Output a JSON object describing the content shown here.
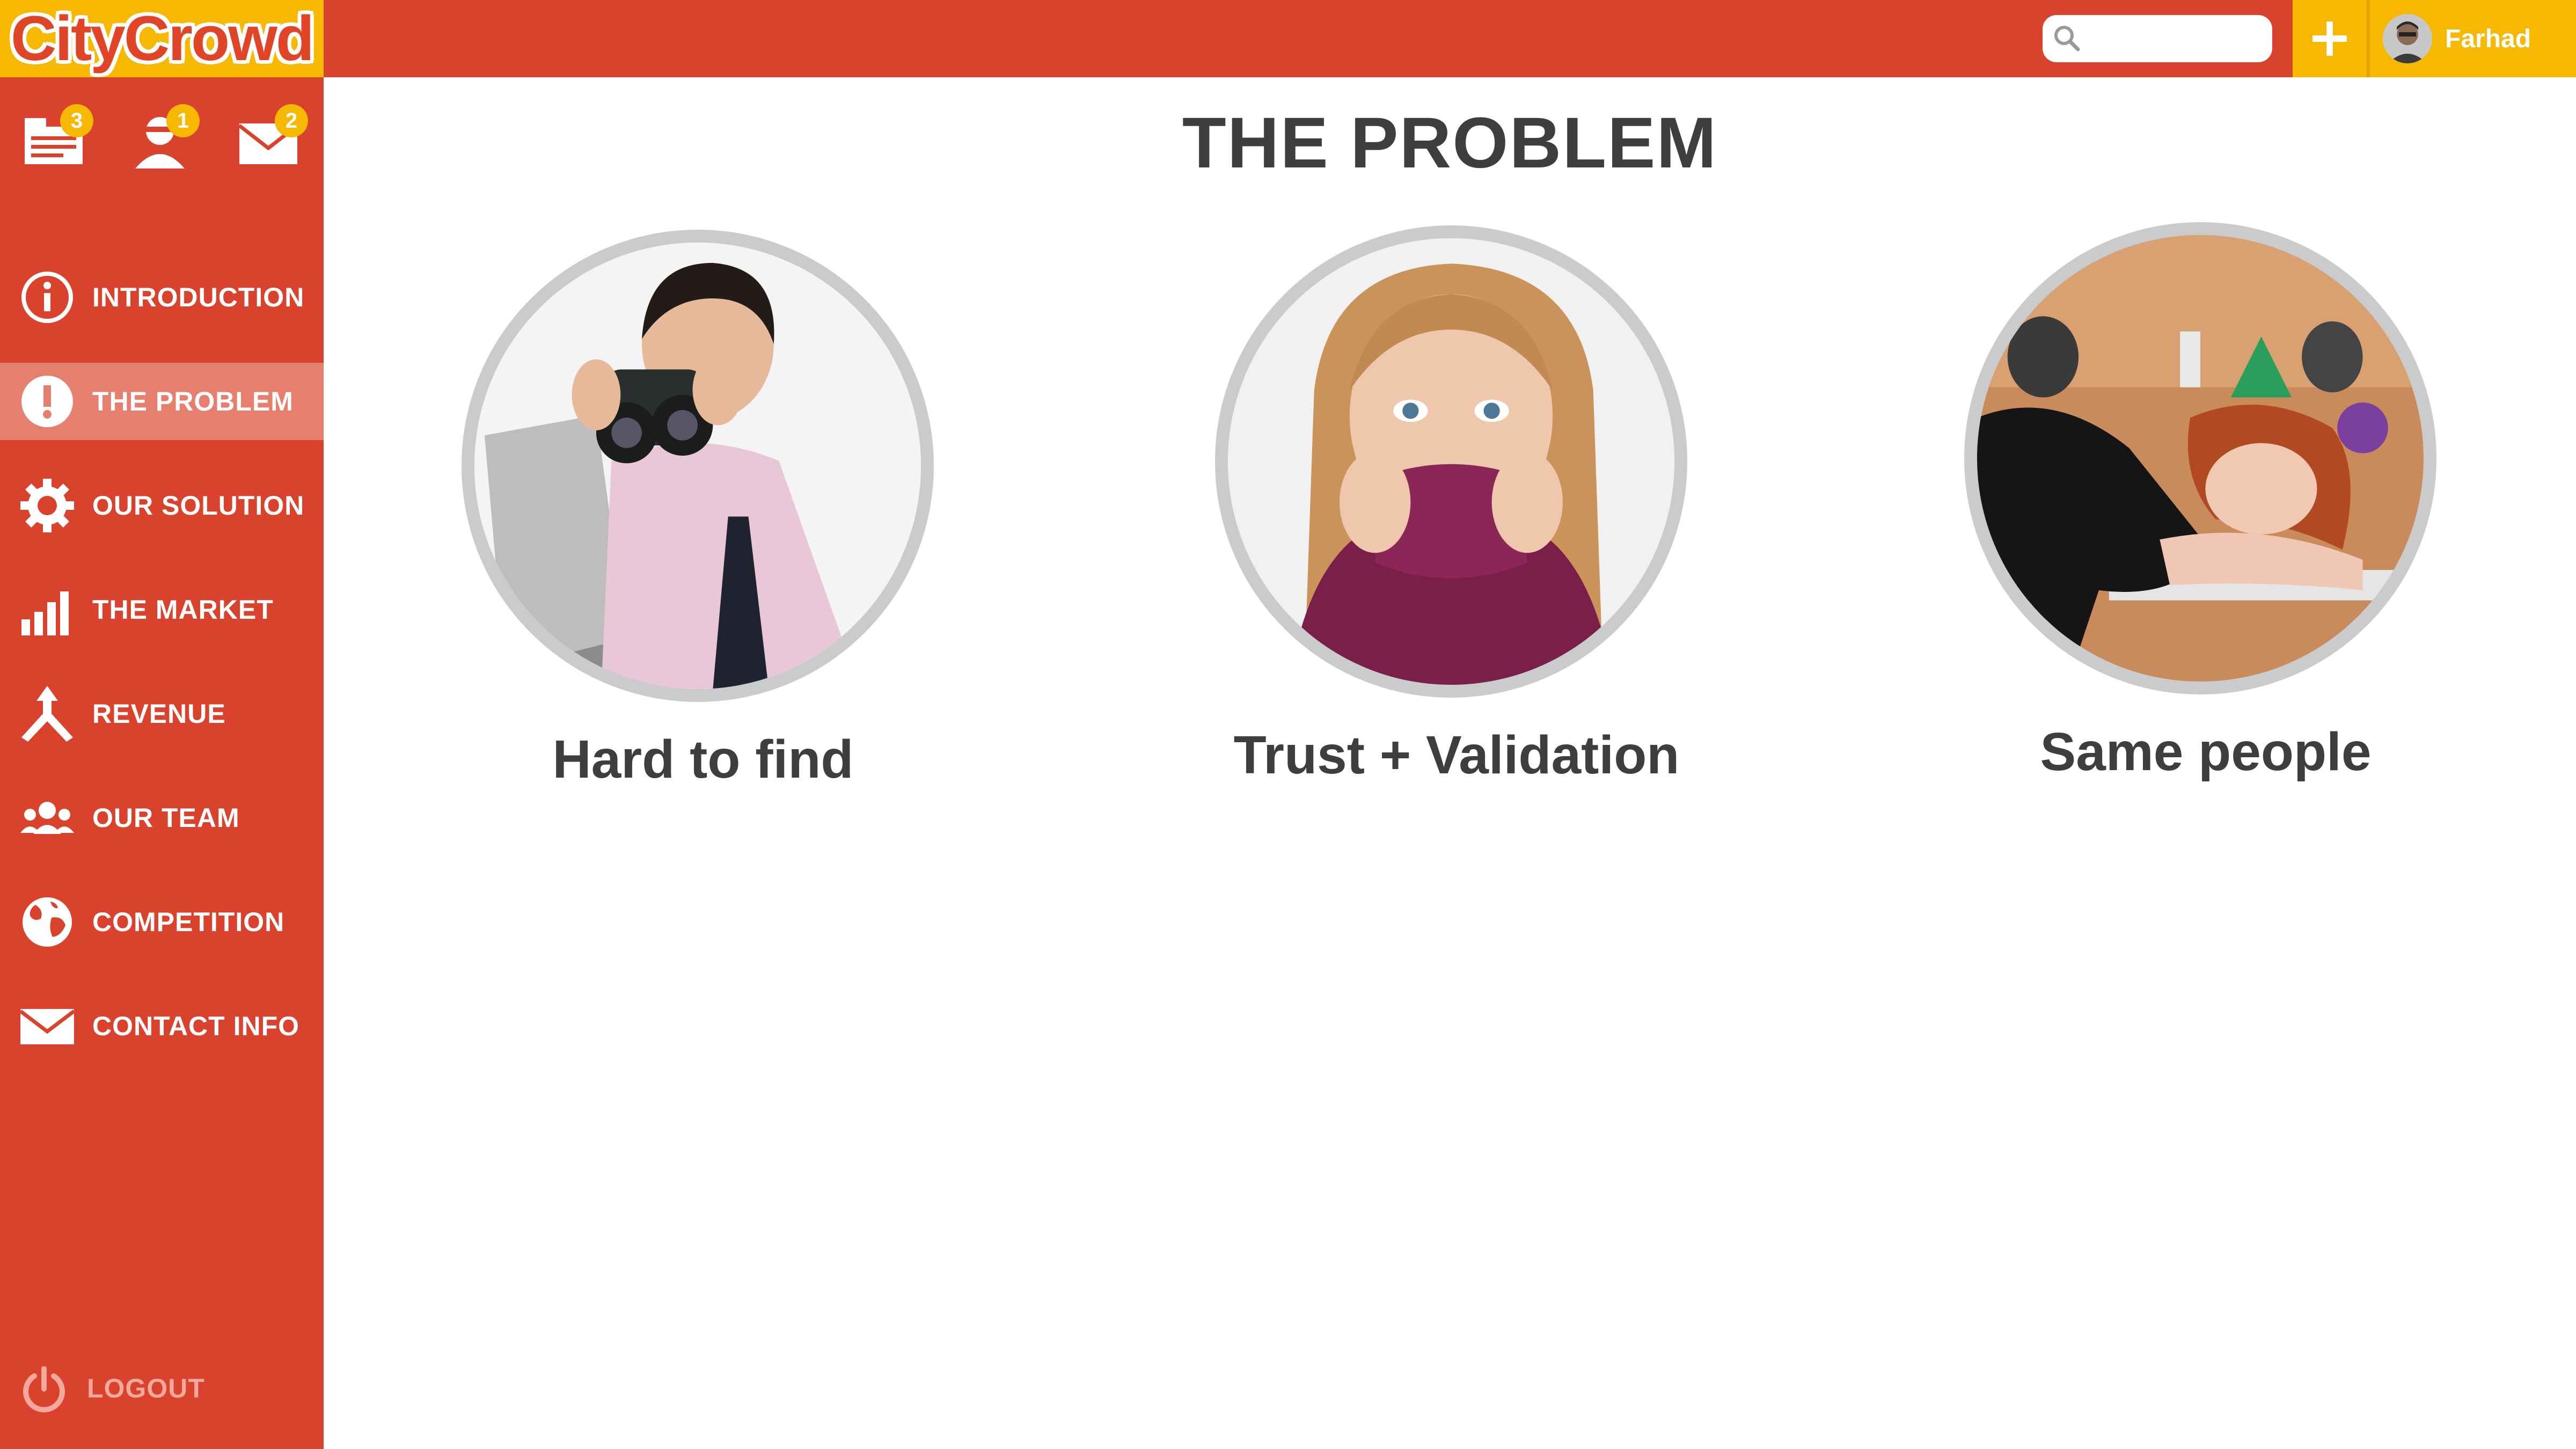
{
  "app": {
    "name": "CityCrowd"
  },
  "header": {
    "search_placeholder": "",
    "add_label": "+",
    "user_name": "Farhad"
  },
  "notifications": [
    {
      "icon": "tasks-icon",
      "count": "3"
    },
    {
      "icon": "user-icon",
      "count": "1"
    },
    {
      "icon": "mail-icon",
      "count": "2"
    }
  ],
  "sidebar": {
    "items": [
      {
        "label": "INTRODUCTION",
        "icon": "info-icon",
        "active": false
      },
      {
        "label": "THE PROBLEM",
        "icon": "alert-icon",
        "active": true
      },
      {
        "label": "OUR SOLUTION",
        "icon": "gear-icon",
        "active": false
      },
      {
        "label": "THE MARKET",
        "icon": "bar-chart-icon",
        "active": false
      },
      {
        "label": "REVENUE",
        "icon": "merge-arrow-icon",
        "active": false
      },
      {
        "label": "OUR TEAM",
        "icon": "team-icon",
        "active": false
      },
      {
        "label": "COMPETITION",
        "icon": "globe-icon",
        "active": false
      },
      {
        "label": "CONTACT INFO",
        "icon": "envelope-icon",
        "active": false
      }
    ],
    "logout_label": "LOGOUT"
  },
  "main": {
    "title": "THE PROBLEM",
    "cards": [
      {
        "caption": "Hard to find",
        "image": "man-with-binoculars"
      },
      {
        "caption": "Trust + Validation",
        "image": "anxious-woman"
      },
      {
        "caption": "Same people",
        "image": "bored-woman-at-party"
      }
    ]
  },
  "colors": {
    "primary_red": "#d9432e",
    "accent_yellow": "#f6b800",
    "active_item": "#e67f6e",
    "text_dark": "#3e3e3e",
    "circle_border": "#c9cbcc"
  }
}
